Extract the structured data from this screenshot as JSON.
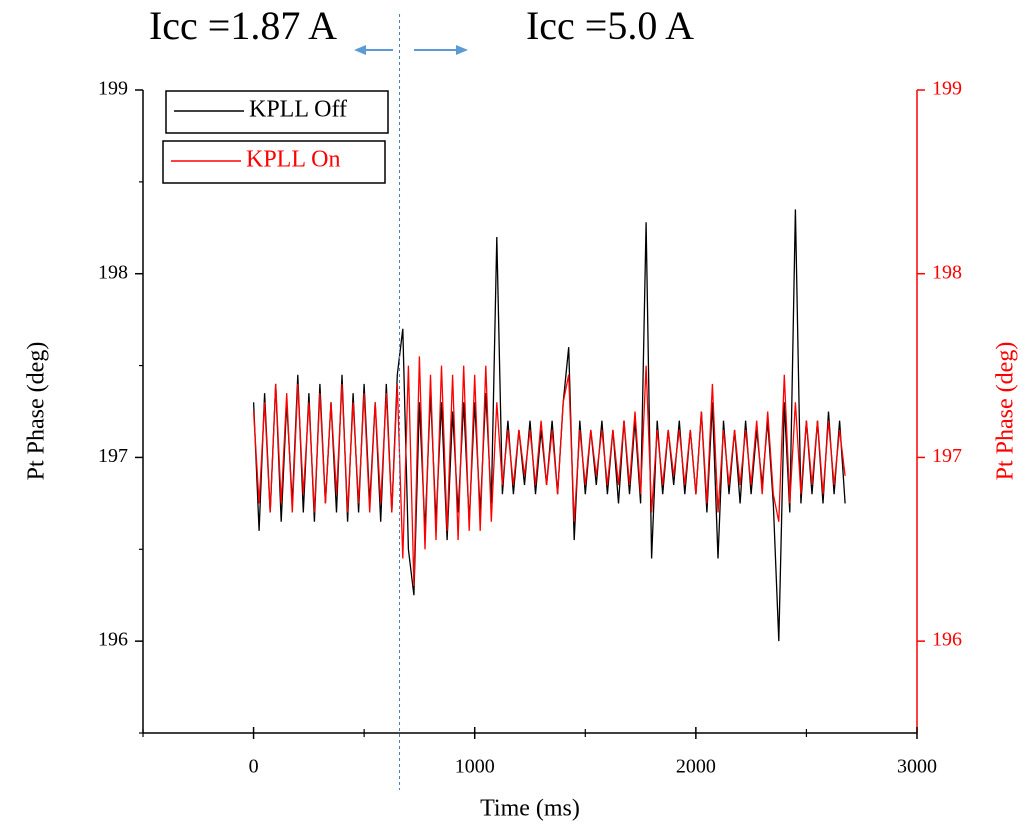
{
  "chart_data": {
    "type": "line",
    "annotations": [
      "Icc =1.87 A",
      "Icc =5.0 A"
    ],
    "vline": 660,
    "xlabel": "Time (ms)",
    "ylabel": "Pt Phase (deg)",
    "y2label": "Pt Phase (deg)",
    "xlim": [
      -500,
      3000
    ],
    "xticks": [
      0,
      1000,
      2000,
      3000
    ],
    "xminor_ticks": [
      -500,
      500,
      1500,
      2500
    ],
    "ylim": [
      195.5,
      199
    ],
    "yticks": [
      196,
      197,
      198,
      199
    ],
    "yminor_ticks": [
      195.5,
      196.5,
      197.5,
      198.5
    ],
    "y2lim": [
      195.5,
      199
    ],
    "y2ticks": [
      196,
      197,
      198,
      199
    ],
    "y2color": "#ff0000",
    "legend": "upper left",
    "x": [
      0,
      25,
      50,
      75,
      100,
      125,
      150,
      175,
      200,
      225,
      250,
      275,
      300,
      325,
      350,
      375,
      400,
      425,
      450,
      475,
      500,
      525,
      550,
      575,
      600,
      625,
      650,
      675,
      700,
      725,
      750,
      775,
      800,
      825,
      850,
      875,
      900,
      925,
      950,
      975,
      1000,
      1025,
      1050,
      1075,
      1100,
      1125,
      1150,
      1175,
      1200,
      1225,
      1250,
      1275,
      1300,
      1325,
      1350,
      1375,
      1400,
      1425,
      1450,
      1475,
      1500,
      1525,
      1550,
      1575,
      1600,
      1625,
      1650,
      1675,
      1700,
      1725,
      1750,
      1775,
      1800,
      1825,
      1850,
      1875,
      1900,
      1925,
      1950,
      1975,
      2000,
      2025,
      2050,
      2075,
      2100,
      2125,
      2150,
      2175,
      2200,
      2225,
      2250,
      2275,
      2300,
      2325,
      2350,
      2375,
      2400,
      2425,
      2450,
      2475,
      2500,
      2525,
      2550,
      2575,
      2600,
      2625,
      2650,
      2675
    ],
    "series": [
      {
        "name": "KPLL Off",
        "color": "#000000",
        "values": [
          197.3,
          196.6,
          197.35,
          196.7,
          197.4,
          196.65,
          197.3,
          196.75,
          197.45,
          196.7,
          197.35,
          196.65,
          197.4,
          196.75,
          197.3,
          196.7,
          197.45,
          196.65,
          197.35,
          196.7,
          197.4,
          196.75,
          197.3,
          196.65,
          197.4,
          196.7,
          197.45,
          197.7,
          196.5,
          196.25,
          197.3,
          196.6,
          197.35,
          196.65,
          197.3,
          196.55,
          197.25,
          196.7,
          197.3,
          196.65,
          197.3,
          196.7,
          197.35,
          196.75,
          198.2,
          196.8,
          197.2,
          196.8,
          197.15,
          196.85,
          197.2,
          196.8,
          197.15,
          196.85,
          197.2,
          196.8,
          197.3,
          197.6,
          196.55,
          197.2,
          196.8,
          197.15,
          196.85,
          197.2,
          196.8,
          197.15,
          196.75,
          197.2,
          196.8,
          197.2,
          196.75,
          198.28,
          196.45,
          197.2,
          196.8,
          197.15,
          196.85,
          197.2,
          196.8,
          197.15,
          196.8,
          197.25,
          196.7,
          197.3,
          196.45,
          197.2,
          196.8,
          197.15,
          196.75,
          197.2,
          196.8,
          197.15,
          196.85,
          197.2,
          196.75,
          196.0,
          197.3,
          196.7,
          198.35,
          196.75,
          197.2,
          196.8,
          197.2,
          196.75,
          197.25,
          196.8,
          197.2,
          196.75
        ]
      },
      {
        "name": "KPLL On",
        "color": "#ff0000",
        "axis": "y2",
        "values": [
          197.25,
          196.75,
          197.3,
          196.7,
          197.4,
          196.75,
          197.35,
          196.7,
          197.4,
          196.8,
          197.3,
          196.7,
          197.35,
          196.75,
          197.3,
          196.8,
          197.4,
          196.7,
          197.3,
          196.75,
          197.35,
          196.7,
          197.3,
          196.75,
          197.35,
          196.7,
          197.4,
          196.45,
          197.5,
          196.3,
          197.55,
          196.5,
          197.45,
          196.55,
          197.5,
          196.6,
          197.45,
          196.55,
          197.5,
          196.6,
          197.45,
          196.6,
          197.5,
          196.65,
          197.3,
          196.85,
          197.15,
          196.85,
          197.15,
          196.9,
          197.15,
          196.85,
          197.2,
          196.85,
          197.15,
          196.8,
          197.3,
          197.45,
          196.65,
          197.15,
          196.85,
          197.15,
          196.9,
          197.15,
          196.85,
          197.15,
          196.85,
          197.2,
          196.85,
          197.25,
          196.8,
          197.5,
          196.7,
          197.15,
          196.85,
          197.15,
          196.9,
          197.15,
          196.85,
          197.15,
          196.8,
          197.25,
          196.75,
          197.4,
          196.7,
          197.15,
          196.85,
          197.15,
          196.85,
          197.15,
          196.85,
          197.2,
          196.8,
          197.25,
          196.8,
          196.65,
          197.45,
          196.75,
          197.3,
          196.8,
          197.2,
          196.85,
          197.2,
          196.8,
          197.2,
          196.85,
          197.15,
          196.9
        ]
      }
    ]
  }
}
